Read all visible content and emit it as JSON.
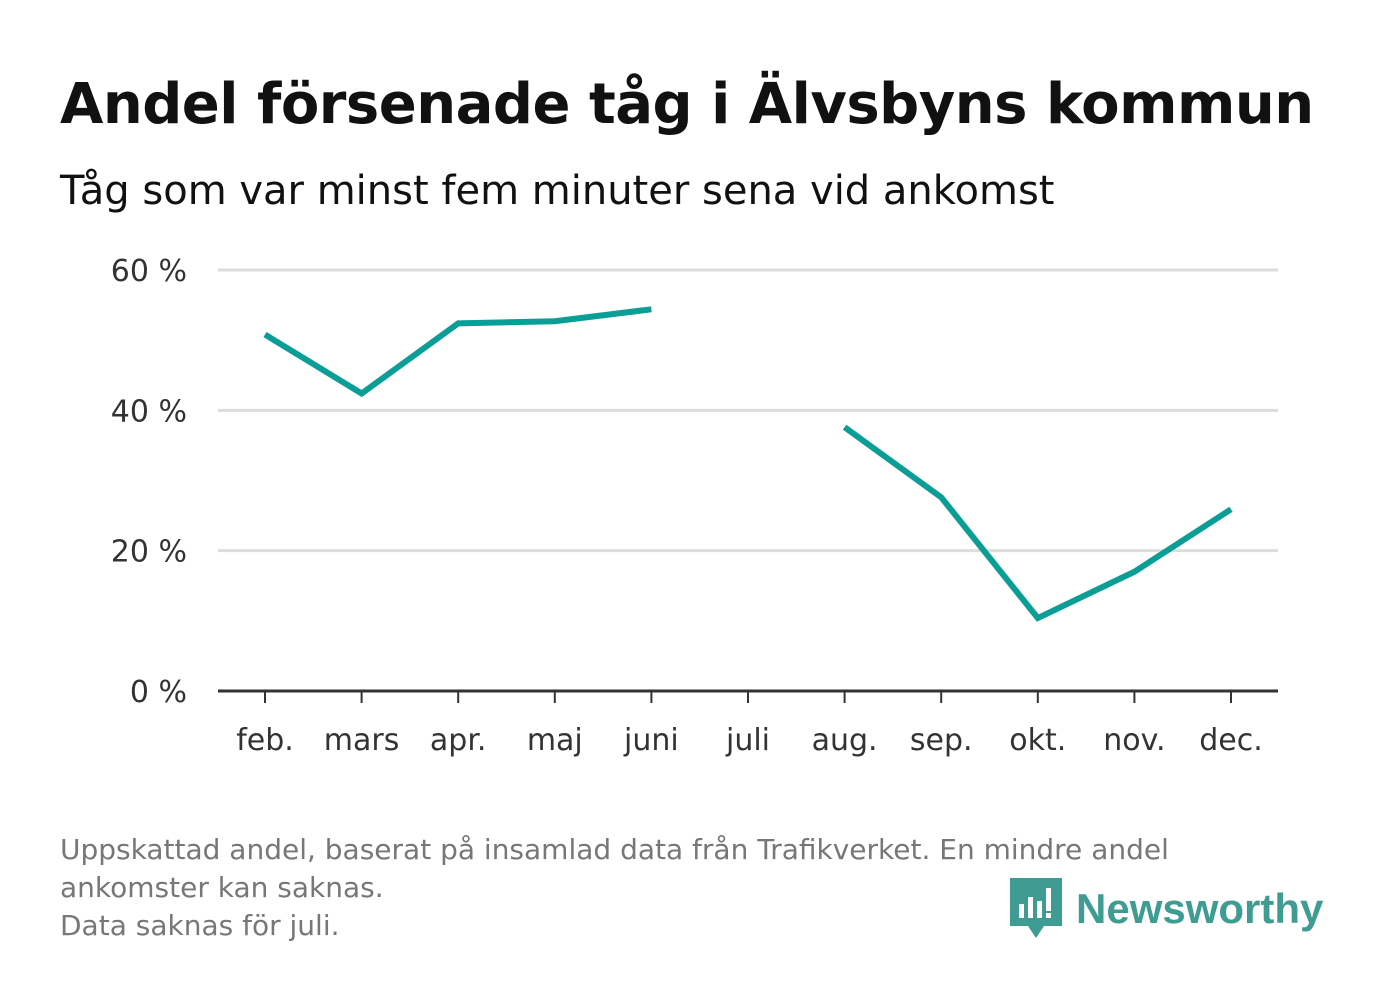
{
  "title": "Andel försenade tåg i Älvsbyns kommun",
  "subtitle": "Tåg som var minst fem minuter sena vid ankomst",
  "footnote": {
    "line1": "Uppskattad andel, baserat på insamlad data från Trafikverket. En mindre andel",
    "line2": "ankomster kan saknas.",
    "line3": "Data saknas för juli."
  },
  "brand": {
    "name": "Newsworthy",
    "icon": "newsworthy-logo-icon",
    "color": "#3e9c92"
  },
  "colors": {
    "line": "#0b9e96",
    "grid": "#dddddd",
    "axis": "#333333"
  },
  "chart_data": {
    "type": "line",
    "title": "Andel försenade tåg i Älvsbyns kommun",
    "subtitle": "Tåg som var minst fem minuter sena vid ankomst",
    "categories": [
      "feb.",
      "mars",
      "apr.",
      "maj",
      "juni",
      "juli",
      "aug.",
      "sep.",
      "okt.",
      "nov.",
      "dec."
    ],
    "series": [
      {
        "values": [
          50.8,
          42.4,
          52.4,
          52.7,
          54.4,
          null,
          37.6,
          27.6,
          10.4,
          17.0,
          25.9
        ]
      }
    ],
    "yticks": [
      0,
      20,
      40,
      60
    ],
    "ytick_labels": [
      "0 %",
      "20 %",
      "40 %",
      "60 %"
    ],
    "ylim": [
      0,
      60
    ],
    "xlabel": "",
    "ylabel": "",
    "grid": true,
    "legend": "none"
  }
}
